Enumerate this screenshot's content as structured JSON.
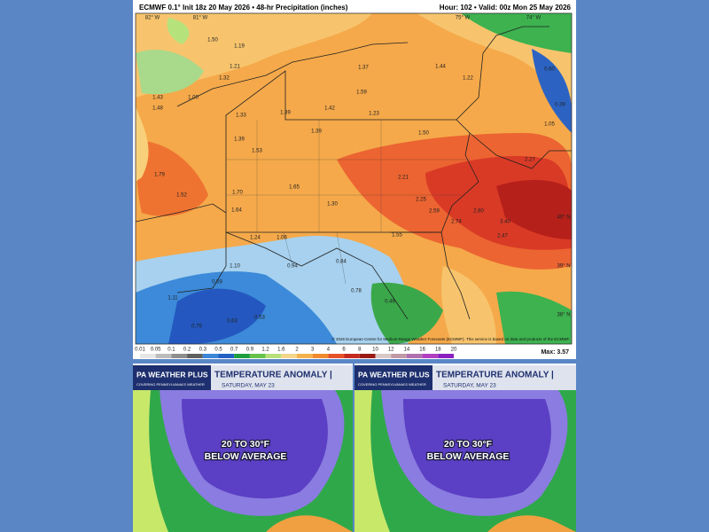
{
  "precip_map": {
    "header_left": "ECMWF 0.1° Init 18z 20 May 2026 • 48-hr Precipitation (inches)",
    "header_right": "Hour: 102 • Valid: 00z Mon 25 May 2026",
    "lon_labels": [
      "82° W",
      "81° W",
      "75° W",
      "74° W"
    ],
    "lat_labels": [
      "40° N",
      "39° N",
      "38° N"
    ],
    "labels": [
      "1.50",
      "1.19",
      "1.21",
      "1.32",
      "1.00",
      "1.43",
      "1.48",
      "1.33",
      "1.39",
      "1.42",
      "1.23",
      "1.59",
      "1.37",
      "1.44",
      "1.22",
      "1.50",
      "1.39",
      "1.39",
      "1.53",
      "1.79",
      "1.52",
      "1.70",
      "1.64",
      "1.65",
      "1.30",
      "2.21",
      "2.25",
      "2.59",
      "2.74",
      "2.80",
      "3.40",
      "2.47",
      "1.55",
      "1.24",
      "1.06",
      "1.10",
      "0.94",
      "0.84",
      "0.78",
      "0.46",
      "0.59",
      "0.53",
      "0.63",
      "0.75",
      "1.11",
      "2.27",
      "1.05",
      "0.60",
      "0.39"
    ],
    "copyright": "© 2026 European Centre for Medium-Range Weather Forecasts (ECMWF). This service is based on data and products of the ECMWF.",
    "colorbar": {
      "ticks": [
        "0.01",
        "0.05",
        "0.1",
        "0.2",
        "0.3",
        "0.5",
        "0.7",
        "0.9",
        "1.2",
        "1.6",
        "2",
        "3",
        "4",
        "6",
        "8",
        "10",
        "12",
        "14",
        "16",
        "18",
        "20"
      ],
      "colors": [
        "#e6e6e6",
        "#bcbcbc",
        "#8e8e8e",
        "#5f5f5f",
        "#3c86d8",
        "#2260c4",
        "#1f9e3f",
        "#65c24a",
        "#b7e07a",
        "#f5d58a",
        "#f4b24d",
        "#f08a2c",
        "#e6522a",
        "#c42a1e",
        "#9a1b16",
        "#d9c8c8",
        "#c09aa6",
        "#b070b0",
        "#b040c0",
        "#8a20c0"
      ],
      "max_label": "Max: 3.57"
    }
  },
  "panels": [
    {
      "brand": "PA WEATHER PLUS",
      "brand_sub": "COVERING PENNSYLVANIA'S WEATHER",
      "title": "TEMPERATURE ANOMALY |",
      "date": "SATURDAY, MAY 23",
      "headline_1": "20 TO 30°F",
      "headline_2": "BELOW AVERAGE"
    },
    {
      "brand": "PA WEATHER PLUS",
      "brand_sub": "COVERING PENNSYLVANIA'S WEATHER",
      "title": "TEMPERATURE ANOMALY |",
      "date": "SATURDAY, MAY 23",
      "headline_1": "20 TO 30°F",
      "headline_2": "BELOW AVERAGE"
    }
  ]
}
